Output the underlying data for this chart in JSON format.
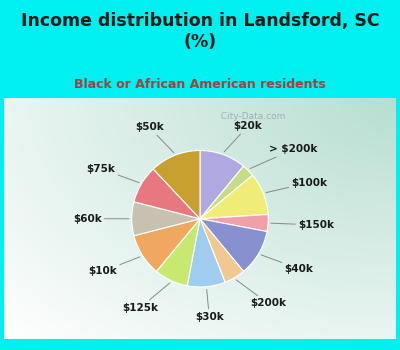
{
  "title": "Income distribution in Landsford, SC\n(%)",
  "subtitle": "Black or African American residents",
  "bg_cyan": "#00EFEF",
  "bg_chart_corner": "#b8dfd0",
  "bg_chart_center": "#e8f8f0",
  "title_color": "#1a1a1a",
  "subtitle_color": "#a04040",
  "labels": [
    "$20k",
    "> $200k",
    "$100k",
    "$150k",
    "$40k",
    "$200k",
    "$30k",
    "$125k",
    "$10k",
    "$60k",
    "$75k",
    "$50k"
  ],
  "values": [
    11,
    3,
    10,
    4,
    11,
    5,
    9,
    8,
    10,
    8,
    9,
    12
  ],
  "colors": [
    "#b0a8e0",
    "#c8dc88",
    "#f0ec78",
    "#f0a0a8",
    "#8890d0",
    "#f0c890",
    "#a0ccf0",
    "#c8e870",
    "#f0a860",
    "#c8c0b0",
    "#e87880",
    "#c8a030"
  ],
  "watermark": "  City-Data.com",
  "label_fontsize": 7.5,
  "title_fontsize": 12.5,
  "subtitle_fontsize": 9
}
